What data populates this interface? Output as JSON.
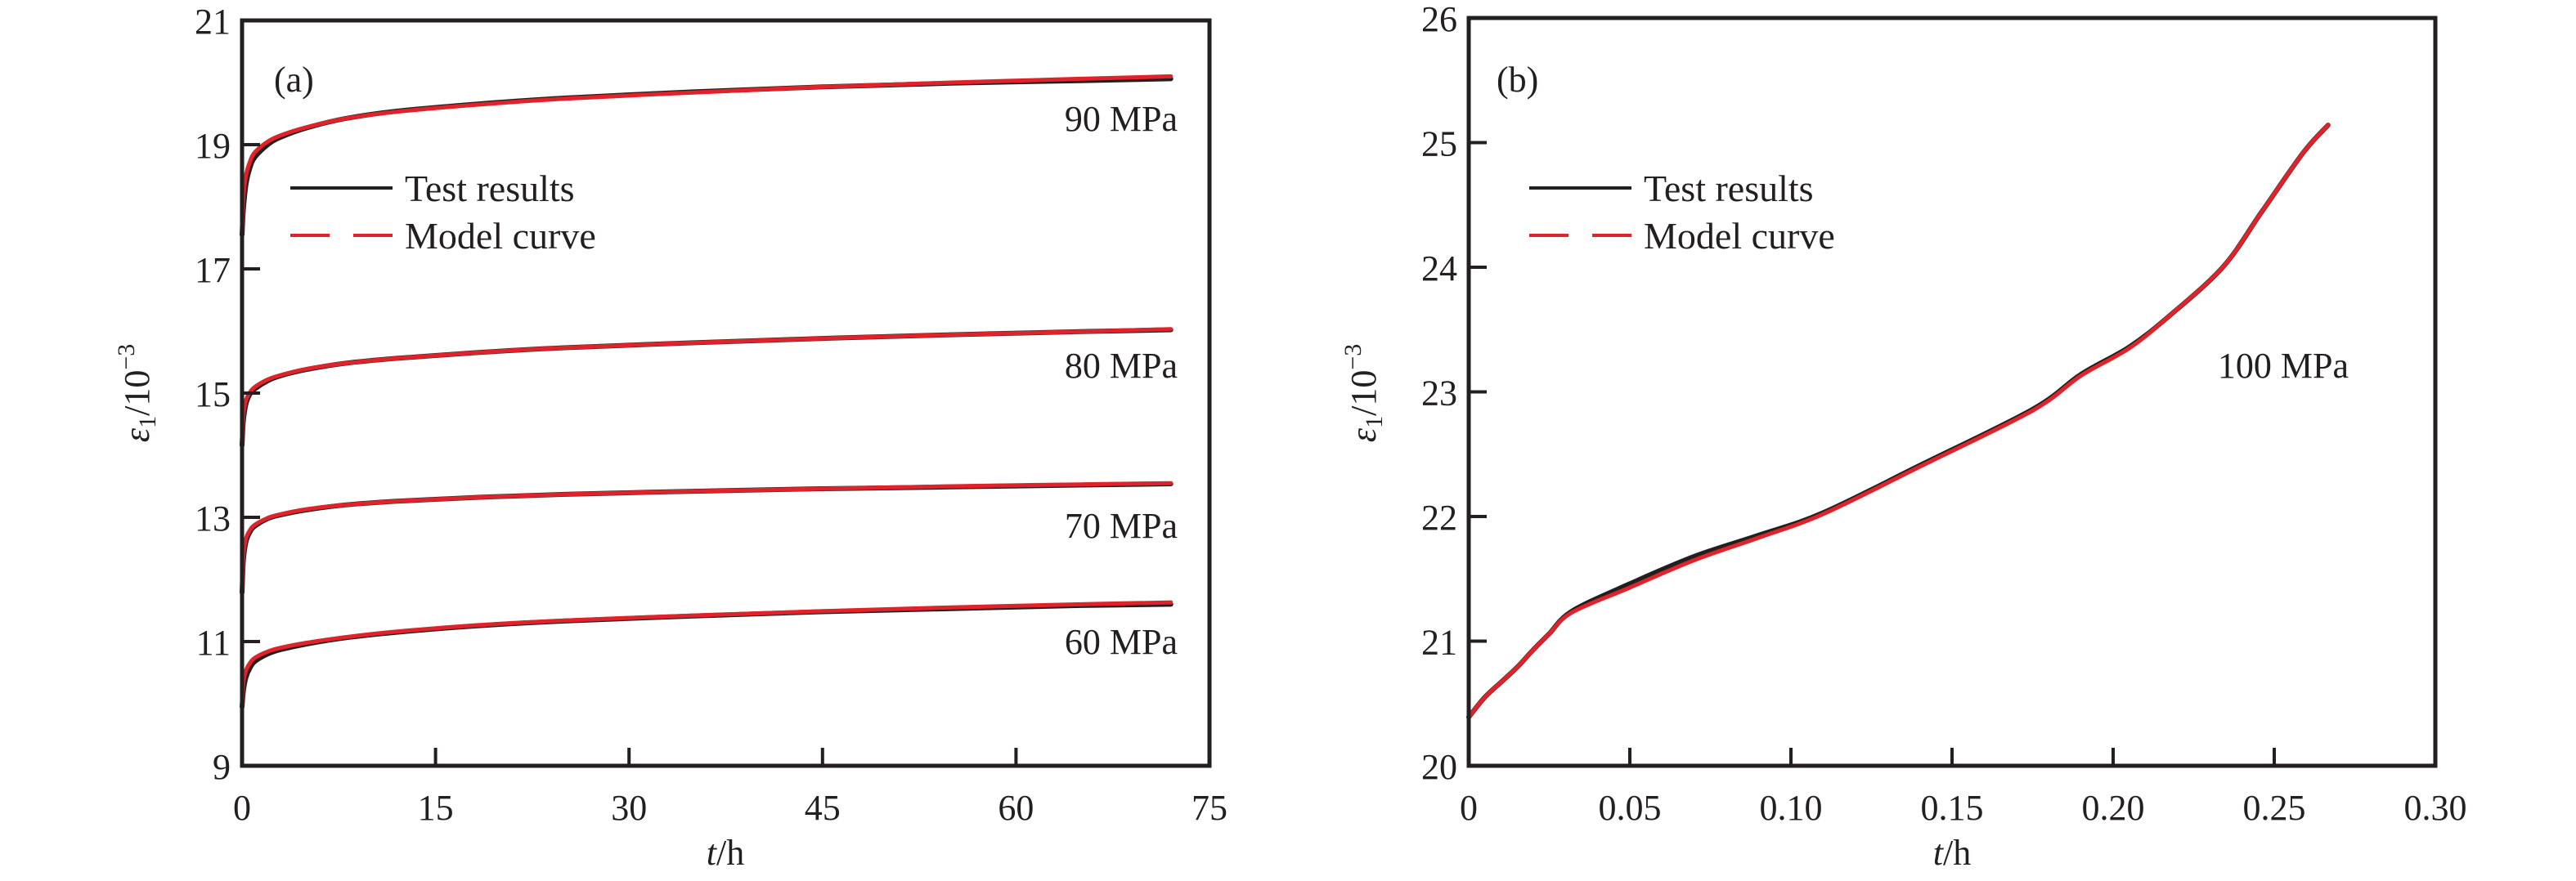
{
  "figure": {
    "legend": {
      "test_label": "Test results",
      "model_label": "Model curve"
    },
    "colors": {
      "test": "#231f20",
      "model": "#e0232b",
      "axis": "#231f20"
    }
  },
  "chart_data": [
    {
      "type": "line",
      "panel": "(a)",
      "title": "",
      "xlabel": "t/h",
      "ylabel": "ε1/10^-3",
      "ylabel_parts": {
        "symbol": "ε",
        "sub": "1",
        "base": "/10",
        "sup": "−3"
      },
      "xlabel_parts": {
        "var": "t",
        "unit": "/h"
      },
      "xlim": [
        0,
        75
      ],
      "ylim": [
        9,
        21
      ],
      "xticks": [
        0,
        15,
        30,
        45,
        60,
        75
      ],
      "xtick_labels": [
        "0",
        "15",
        "30",
        "45",
        "60",
        "75"
      ],
      "yticks": [
        9,
        11,
        13,
        15,
        17,
        19,
        21
      ],
      "ytick_labels": [
        "9",
        "11",
        "13",
        "15",
        "17",
        "19",
        "21"
      ],
      "grid": false,
      "legend_position": "upper-left",
      "series_labels": [
        {
          "text": "90 MPa",
          "x": 72,
          "y": 19.4
        },
        {
          "text": "80 MPa",
          "x": 72,
          "y": 15.4
        },
        {
          "text": "70 MPa",
          "x": 72,
          "y": 13.1
        },
        {
          "text": "60 MPa",
          "x": 72,
          "y": 11.0
        }
      ],
      "series": [
        {
          "name": "Test results 90 MPa",
          "group": "90 MPa",
          "kind": "test",
          "x": [
            0,
            0.1,
            0.3,
            0.6,
            1,
            2,
            3,
            5,
            8,
            12,
            18,
            25,
            35,
            45,
            55,
            65,
            72
          ],
          "y": [
            17.55,
            17.95,
            18.35,
            18.62,
            18.8,
            19.0,
            19.12,
            19.27,
            19.42,
            19.54,
            19.65,
            19.75,
            19.85,
            19.93,
            19.99,
            20.03,
            20.06
          ]
        },
        {
          "name": "Model curve 90 MPa",
          "group": "90 MPa",
          "kind": "model",
          "x": [
            0,
            0.1,
            0.3,
            0.6,
            1,
            2,
            3,
            5,
            8,
            12,
            18,
            25,
            35,
            45,
            55,
            65,
            72
          ],
          "y": [
            17.55,
            18.15,
            18.5,
            18.72,
            18.88,
            19.05,
            19.15,
            19.28,
            19.42,
            19.53,
            19.64,
            19.74,
            19.84,
            19.93,
            20.0,
            20.06,
            20.1
          ]
        },
        {
          "name": "Test results 80 MPa",
          "group": "80 MPa",
          "kind": "test",
          "x": [
            0,
            0.1,
            0.3,
            0.6,
            1,
            2,
            3,
            5,
            8,
            12,
            18,
            25,
            35,
            45,
            55,
            65,
            72
          ],
          "y": [
            14.16,
            14.55,
            14.82,
            14.98,
            15.07,
            15.2,
            15.28,
            15.38,
            15.48,
            15.56,
            15.65,
            15.73,
            15.81,
            15.88,
            15.94,
            15.99,
            16.02
          ]
        },
        {
          "name": "Model curve 80 MPa",
          "group": "80 MPa",
          "kind": "model",
          "x": [
            0,
            0.1,
            0.3,
            0.6,
            1,
            2,
            3,
            5,
            8,
            12,
            18,
            25,
            35,
            45,
            55,
            65,
            72
          ],
          "y": [
            14.16,
            14.65,
            14.88,
            15.01,
            15.1,
            15.22,
            15.29,
            15.39,
            15.48,
            15.56,
            15.65,
            15.73,
            15.81,
            15.88,
            15.94,
            15.99,
            16.03
          ]
        },
        {
          "name": "Test results 70 MPa",
          "group": "70 MPa",
          "kind": "test",
          "x": [
            0,
            0.1,
            0.3,
            0.6,
            1,
            2,
            3,
            5,
            8,
            12,
            18,
            25,
            35,
            45,
            55,
            65,
            72
          ],
          "y": [
            11.79,
            12.3,
            12.6,
            12.76,
            12.86,
            12.98,
            13.04,
            13.12,
            13.2,
            13.26,
            13.32,
            13.37,
            13.42,
            13.46,
            13.49,
            13.52,
            13.54
          ]
        },
        {
          "name": "Model curve 70 MPa",
          "group": "70 MPa",
          "kind": "model",
          "x": [
            0,
            0.1,
            0.3,
            0.6,
            1,
            2,
            3,
            5,
            8,
            12,
            18,
            25,
            35,
            45,
            55,
            65,
            72
          ],
          "y": [
            11.79,
            12.38,
            12.65,
            12.79,
            12.88,
            12.99,
            13.05,
            13.13,
            13.2,
            13.26,
            13.32,
            13.37,
            13.42,
            13.46,
            13.5,
            13.53,
            13.55
          ]
        },
        {
          "name": "Test results 60 MPa",
          "group": "60 MPa",
          "kind": "test",
          "x": [
            0,
            0.1,
            0.3,
            0.6,
            1,
            2,
            3,
            5,
            8,
            12,
            18,
            25,
            35,
            45,
            55,
            65,
            72
          ],
          "y": [
            9.95,
            10.2,
            10.42,
            10.57,
            10.68,
            10.8,
            10.87,
            10.96,
            11.06,
            11.15,
            11.25,
            11.33,
            11.41,
            11.48,
            11.53,
            11.58,
            11.6
          ]
        },
        {
          "name": "Model curve 60 MPa",
          "group": "60 MPa",
          "kind": "model",
          "x": [
            0,
            0.1,
            0.3,
            0.6,
            1,
            2,
            3,
            5,
            8,
            12,
            18,
            25,
            35,
            45,
            55,
            65,
            72
          ],
          "y": [
            9.95,
            10.35,
            10.53,
            10.65,
            10.74,
            10.84,
            10.9,
            10.98,
            11.07,
            11.16,
            11.26,
            11.34,
            11.42,
            11.49,
            11.55,
            11.6,
            11.63
          ]
        }
      ]
    },
    {
      "type": "line",
      "panel": "(b)",
      "title": "",
      "xlabel": "t/h",
      "ylabel": "ε1/10^-3",
      "ylabel_parts": {
        "symbol": "ε",
        "sub": "1",
        "base": "/10",
        "sup": "−3"
      },
      "xlabel_parts": {
        "var": "t",
        "unit": "/h"
      },
      "xlim": [
        0,
        0.3
      ],
      "ylim": [
        20,
        26
      ],
      "xticks": [
        0,
        0.05,
        0.1,
        0.15,
        0.2,
        0.25,
        0.3
      ],
      "xtick_labels": [
        "0",
        "0.05",
        "0.10",
        "0.15",
        "0.20",
        "0.25",
        "0.30"
      ],
      "yticks": [
        20,
        21,
        22,
        23,
        24,
        25,
        26
      ],
      "ytick_labels": [
        "20",
        "21",
        "22",
        "23",
        "24",
        "25",
        "26"
      ],
      "grid": false,
      "legend_position": "upper-left",
      "series_labels": [
        {
          "text": "100 MPa",
          "x": 0.245,
          "y": 22.95
        }
      ],
      "series": [
        {
          "name": "Test results 100 MPa",
          "group": "100 MPa",
          "kind": "test",
          "x": [
            0,
            0.005,
            0.01,
            0.015,
            0.02,
            0.025,
            0.032,
            0.05,
            0.07,
            0.09,
            0.11,
            0.14,
            0.175,
            0.19,
            0.205,
            0.217,
            0.234,
            0.246,
            0.259,
            0.2667
          ],
          "y": [
            20.39,
            20.55,
            20.67,
            20.79,
            20.93,
            21.06,
            21.24,
            21.46,
            21.68,
            21.85,
            22.03,
            22.41,
            22.86,
            23.14,
            23.36,
            23.6,
            24.0,
            24.44,
            24.92,
            25.14
          ]
        },
        {
          "name": "Model curve 100 MPa",
          "group": "100 MPa",
          "kind": "model",
          "x": [
            0,
            0.005,
            0.01,
            0.015,
            0.02,
            0.025,
            0.032,
            0.05,
            0.07,
            0.09,
            0.11,
            0.14,
            0.175,
            0.19,
            0.205,
            0.217,
            0.234,
            0.246,
            0.259,
            0.2667
          ],
          "y": [
            20.39,
            20.55,
            20.67,
            20.79,
            20.93,
            21.06,
            21.23,
            21.43,
            21.65,
            21.83,
            22.02,
            22.4,
            22.85,
            23.13,
            23.35,
            23.6,
            24.0,
            24.44,
            24.92,
            25.14
          ]
        }
      ]
    }
  ]
}
